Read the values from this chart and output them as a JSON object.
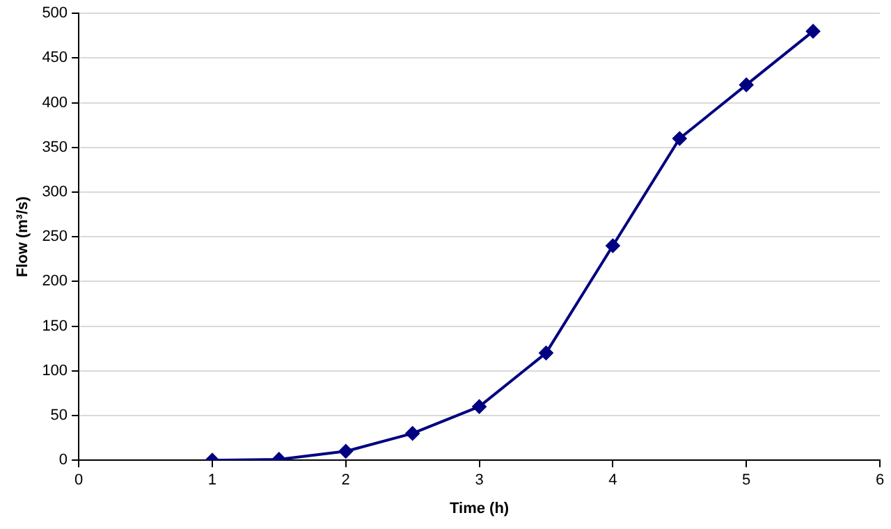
{
  "chart_data": {
    "type": "line",
    "xlabel": "Time (h)",
    "ylabel": "Flow (m³/s)",
    "x": [
      1,
      1.5,
      2,
      2.5,
      3,
      3.5,
      4,
      4.5,
      5,
      5.5
    ],
    "series": [
      {
        "color": "#000080",
        "values": [
          0,
          1,
          10,
          30,
          60,
          120,
          240,
          360,
          420,
          480
        ]
      }
    ],
    "xlim": [
      0,
      6
    ],
    "xticks": [
      0,
      1,
      2,
      3,
      4,
      5,
      6
    ],
    "ylim": [
      0,
      500
    ],
    "yticks": [
      0,
      50,
      100,
      150,
      200,
      250,
      300,
      350,
      400,
      450,
      500
    ],
    "grid": "y",
    "legend": false,
    "marker": "diamond",
    "line_style": "solid"
  }
}
